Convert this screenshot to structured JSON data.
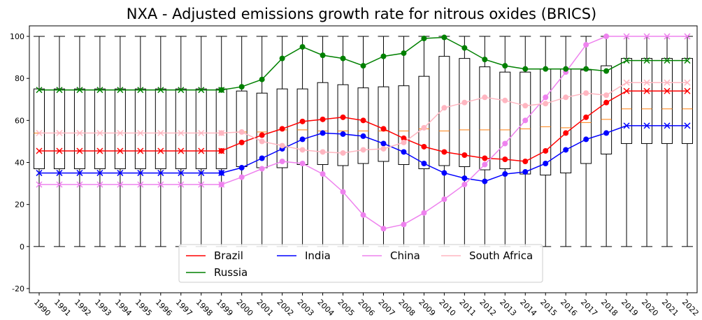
{
  "chart_data": {
    "type": "line",
    "title": "NXA - Adjusted emissions growth rate for nitrous oxides (BRICS)",
    "xlabel": "",
    "ylabel": "",
    "ylim": [
      -22,
      105
    ],
    "yticks": [
      -20,
      0,
      20,
      40,
      60,
      80,
      100
    ],
    "categories": [
      "1990",
      "1991",
      "1992",
      "1993",
      "1994",
      "1995",
      "1996",
      "1997",
      "1998",
      "1999",
      "2000",
      "2001",
      "2002",
      "2003",
      "2004",
      "2005",
      "2006",
      "2007",
      "2008",
      "2009",
      "2010",
      "2011",
      "2012",
      "2013",
      "2014",
      "2015",
      "2016",
      "2017",
      "2018",
      "2019",
      "2020",
      "2021",
      "2022"
    ],
    "series": [
      {
        "name": "Brazil",
        "color": "#ff0000",
        "values": [
          45.5,
          45.5,
          45.5,
          45.5,
          45.5,
          45.5,
          45.5,
          45.5,
          45.5,
          45.5,
          49.5,
          53,
          56,
          59.5,
          60.5,
          61.5,
          60,
          56,
          51.5,
          47.5,
          45,
          43.5,
          42,
          41.5,
          40.5,
          45.5,
          54,
          61.5,
          68.5,
          74,
          74,
          74,
          74
        ]
      },
      {
        "name": "India",
        "color": "#0000ff",
        "values": [
          35,
          35,
          35,
          35,
          35,
          35,
          35,
          35,
          35,
          35,
          37.5,
          42,
          46.5,
          51,
          54,
          53.5,
          52.5,
          49,
          45,
          39.5,
          35,
          32.5,
          31,
          34.5,
          35.5,
          39.5,
          46,
          51,
          54,
          57.5,
          57.5,
          57.5,
          57.5
        ]
      },
      {
        "name": "China",
        "color": "#ee82ee",
        "values": [
          29.5,
          29.5,
          29.5,
          29.5,
          29.5,
          29.5,
          29.5,
          29.5,
          29.5,
          29.5,
          33,
          37,
          40.5,
          39.5,
          34.5,
          26,
          15,
          8.5,
          10.5,
          16,
          22.5,
          29.5,
          39,
          49,
          60,
          71,
          83,
          96,
          100,
          100,
          100,
          100,
          100
        ]
      },
      {
        "name": "South Africa",
        "color": "#ffb6c1",
        "values": [
          54,
          54,
          54,
          54,
          54,
          54,
          54,
          54,
          54,
          54,
          54.5,
          50,
          48,
          46,
          45,
          44.5,
          46,
          46.5,
          49.5,
          56.5,
          66,
          68.5,
          71,
          69.5,
          67,
          68,
          71,
          73,
          72,
          78,
          78,
          78,
          78
        ]
      },
      {
        "name": "Russia",
        "color": "#008000",
        "values": [
          74.5,
          74.5,
          74.5,
          74.5,
          74.5,
          74.5,
          74.5,
          74.5,
          74.5,
          74.5,
          76,
          79.5,
          89.5,
          95,
          91,
          89.5,
          86,
          90.5,
          92,
          99,
          99.5,
          94.5,
          89,
          86,
          84.5,
          84.5,
          84.5,
          84.5,
          83.5,
          88.5,
          88.5,
          88.5,
          88.5
        ]
      }
    ],
    "boxplot": {
      "whisker_low": [
        0,
        0,
        0,
        0,
        0,
        0,
        0,
        0,
        0,
        0,
        0,
        0,
        0,
        0,
        0,
        0,
        0,
        0,
        0,
        0,
        0,
        0,
        0,
        0,
        0,
        0,
        0,
        0,
        0,
        0,
        0,
        0,
        0
      ],
      "q1": [
        37,
        37,
        37,
        37,
        37,
        37,
        37,
        37,
        37,
        37,
        38,
        37.5,
        37.5,
        39,
        39,
        38.5,
        39.5,
        40.5,
        39,
        37,
        38.5,
        38,
        36.5,
        37,
        34.5,
        34,
        35,
        39.5,
        44,
        49,
        49,
        49,
        49
      ],
      "median": [
        54,
        54,
        54,
        54,
        54,
        54,
        54,
        54,
        54,
        54,
        54.5,
        54.5,
        55.5,
        55.5,
        55,
        55,
        55,
        55,
        55,
        56,
        55,
        55.5,
        55.5,
        55.5,
        56,
        57,
        56.5,
        59,
        60.5,
        65.5,
        65.5,
        65.5,
        65.5
      ],
      "q3": [
        75,
        75,
        75,
        75,
        75,
        75,
        75,
        75,
        75,
        75,
        74,
        73,
        75,
        75,
        78,
        77,
        75.5,
        76,
        76.5,
        81,
        90.5,
        89.5,
        85.5,
        83,
        83,
        84.5,
        84.5,
        84,
        86,
        89.5,
        89.5,
        89.5,
        89.5
      ],
      "whisker_high": [
        100,
        100,
        100,
        100,
        100,
        100,
        100,
        100,
        100,
        100,
        100,
        100,
        100,
        100,
        100,
        100,
        100,
        100,
        100,
        100,
        100,
        100,
        100,
        100,
        100,
        100,
        100,
        100,
        100,
        100,
        100,
        100,
        100
      ],
      "mean_color": "#ff7f0e"
    },
    "markers": {
      "cross_ranges": [
        [
          0,
          9
        ],
        [
          29,
          32
        ]
      ],
      "dot_range": [
        9,
        28
      ]
    },
    "legend": {
      "placement": "bottom-center",
      "rows": [
        [
          "Brazil",
          "India",
          "China",
          "South Africa"
        ],
        [
          "Russia"
        ]
      ]
    }
  }
}
